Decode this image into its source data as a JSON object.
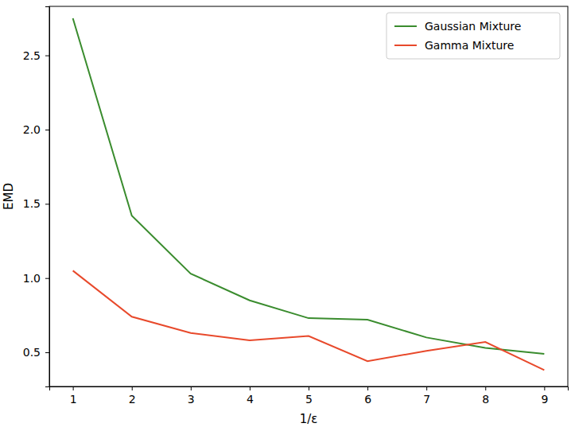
{
  "chart_data": {
    "type": "line",
    "x_label": "1/ε",
    "y_label": "EMD",
    "x": [
      1,
      2,
      3,
      4,
      5,
      6,
      7,
      8,
      9
    ],
    "series": [
      {
        "name": "Gaussian Mixture",
        "color": "#3a8c2e",
        "values": [
          2.75,
          1.42,
          1.03,
          0.85,
          0.73,
          0.72,
          0.6,
          0.53,
          0.49
        ]
      },
      {
        "name": "Gamma Mixture",
        "color": "#e8492b",
        "values": [
          1.05,
          0.74,
          0.63,
          0.58,
          0.61,
          0.44,
          0.51,
          0.57,
          0.38
        ]
      }
    ],
    "xlim": [
      0.6,
      9.4
    ],
    "xticks": [
      1,
      2,
      3,
      4,
      5,
      6,
      7,
      8,
      9
    ],
    "ylim": [
      0.27,
      2.83
    ],
    "yticks": [
      {
        "value": 0.5,
        "label": "0.5"
      },
      {
        "value": 1.0,
        "label": "1.0"
      },
      {
        "value": 1.5,
        "label": "1.5"
      },
      {
        "value": 2.0,
        "label": "2.0"
      },
      {
        "value": 2.5,
        "label": "2.5"
      }
    ],
    "grid": false,
    "legend": "upper right"
  }
}
